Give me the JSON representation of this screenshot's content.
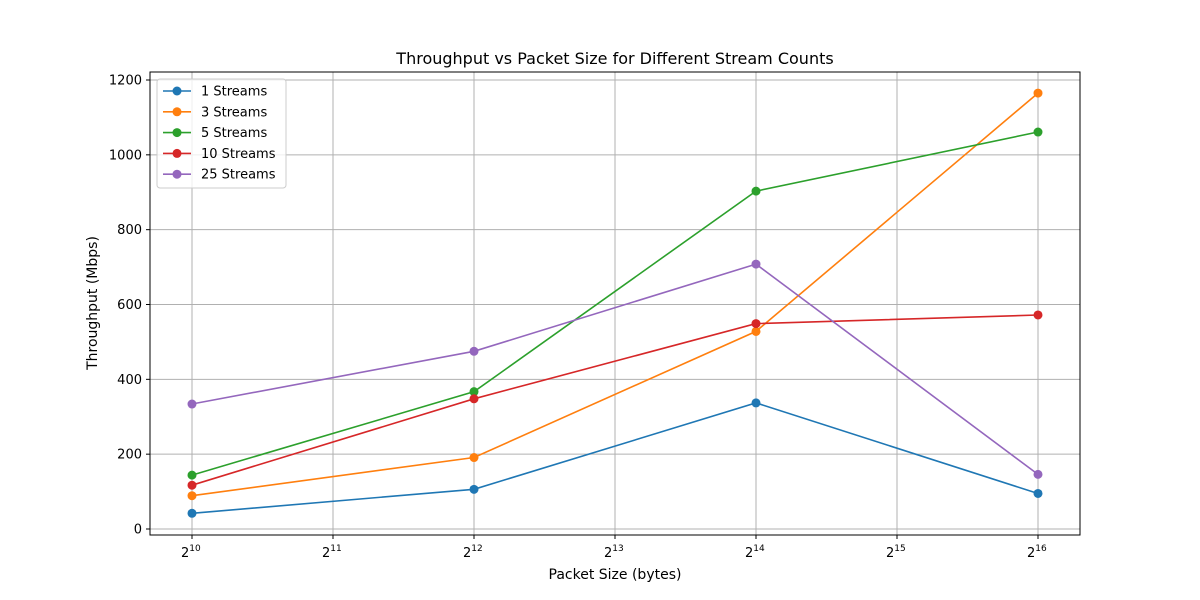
{
  "chart_data": {
    "type": "line",
    "title": "Throughput vs Packet Size for Different Stream Counts",
    "xlabel": "Packet Size (bytes)",
    "ylabel": "Throughput (Mbps)",
    "x_scale": "log2",
    "x": [
      1024,
      4096,
      16384,
      65536
    ],
    "x_ticks": [
      {
        "base": "2",
        "exp": "10"
      },
      {
        "base": "2",
        "exp": "11"
      },
      {
        "base": "2",
        "exp": "12"
      },
      {
        "base": "2",
        "exp": "13"
      },
      {
        "base": "2",
        "exp": "14"
      },
      {
        "base": "2",
        "exp": "15"
      },
      {
        "base": "2",
        "exp": "16"
      }
    ],
    "y_ticks": [
      "0",
      "200",
      "400",
      "600",
      "800",
      "1000",
      "1200"
    ],
    "ylim": [
      0,
      1200
    ],
    "grid": true,
    "legend_position": "top-left",
    "series": [
      {
        "name": "1 Streams",
        "color": "#1f77b4",
        "values": [
          42,
          106,
          337,
          95
        ]
      },
      {
        "name": "3 Streams",
        "color": "#ff7f0e",
        "values": [
          89,
          191,
          528,
          1165
        ]
      },
      {
        "name": "5 Streams",
        "color": "#2ca02c",
        "values": [
          144,
          367,
          903,
          1061
        ]
      },
      {
        "name": "10 Streams",
        "color": "#d62728",
        "values": [
          117,
          348,
          549,
          572
        ]
      },
      {
        "name": "25 Streams",
        "color": "#9467bd",
        "values": [
          334,
          475,
          708,
          146
        ]
      }
    ]
  }
}
